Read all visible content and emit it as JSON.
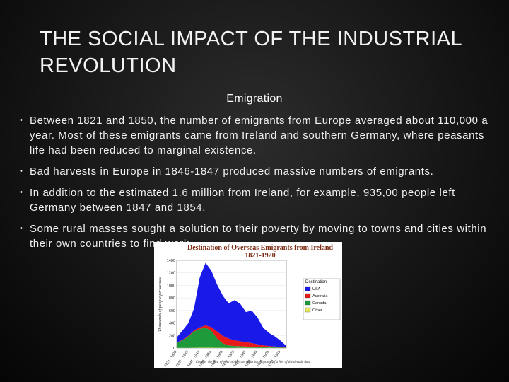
{
  "slide": {
    "title": "THE SOCIAL IMPACT OF THE INDUSTRIAL REVOLUTION",
    "subtitle": "Emigration",
    "bullet_glyph": "•",
    "bullets": [
      "Between 1821 and 1850, the number of emigrants from Europe averaged about 110,000 a year. Most of these emigrants came from Ireland and southern Germany, where peasants life had been reduced to marginal existence.",
      "Bad harvests in Europe in 1846-1847 produced massive numbers of emigrants.",
      "In addition to the estimated 1.6 million from Ireland, for example, 935,00 people left Germany between 1847 and 1854.",
      "Some rural masses sought a solution to their poverty by moving to towns and cities within their own countries to find work."
    ]
  },
  "chart_data": {
    "type": "area",
    "title": "Destination of Overseas Emigrants from Ireland 1821-1920",
    "ylabel": "Thousands of people per decade",
    "ylim": [
      0,
      1400
    ],
    "yticks": [
      "1400",
      "1200",
      "1000",
      "800",
      "600",
      "400",
      "200",
      "0"
    ],
    "x": [
      "1821-1825",
      "1826-1830",
      "1831-1835",
      "1836-1840",
      "1841-1845",
      "1846-1850",
      "1851-1855",
      "1856-1860",
      "1861-1865",
      "1866-1870",
      "1871-1875",
      "1876-1880",
      "1881-1885",
      "1886-1890",
      "1891-1895",
      "1896-1900",
      "1901-1905",
      "1906-1910",
      "1911-1915",
      "1916-1920"
    ],
    "xtick_labels": [
      "1821 - 1825",
      "1831 - 1835",
      "1841 - 1845",
      "1851 - 1855",
      "1861 - 1865",
      "1871 - 1875",
      "1881 - 1885",
      "1891 - 1895",
      "1901 - 1905",
      "1911 - 1915"
    ],
    "legend_title": "Destination",
    "series": [
      {
        "name": "Other",
        "color": "#e8e860",
        "values": [
          3,
          3,
          3,
          4,
          5,
          6,
          5,
          4,
          4,
          3,
          3,
          4,
          4,
          4,
          3,
          3,
          4,
          3,
          2,
          2
        ]
      },
      {
        "name": "Canada",
        "color": "#1e9a3a",
        "values": [
          80,
          120,
          180,
          260,
          300,
          320,
          270,
          150,
          70,
          40,
          30,
          25,
          20,
          15,
          12,
          10,
          8,
          8,
          6,
          5
        ]
      },
      {
        "name": "Australia",
        "color": "#e81a1a",
        "values": [
          5,
          8,
          12,
          18,
          25,
          35,
          60,
          110,
          120,
          110,
          90,
          80,
          70,
          60,
          45,
          30,
          20,
          15,
          10,
          8
        ]
      },
      {
        "name": "USA",
        "color": "#1a1ae8",
        "values": [
          80,
          150,
          200,
          350,
          800,
          1000,
          900,
          750,
          640,
          560,
          640,
          600,
          480,
          520,
          430,
          280,
          210,
          160,
          100,
          20
        ]
      }
    ],
    "note": "Counter the best of your ability the chart is composed of a few of the decade data"
  }
}
